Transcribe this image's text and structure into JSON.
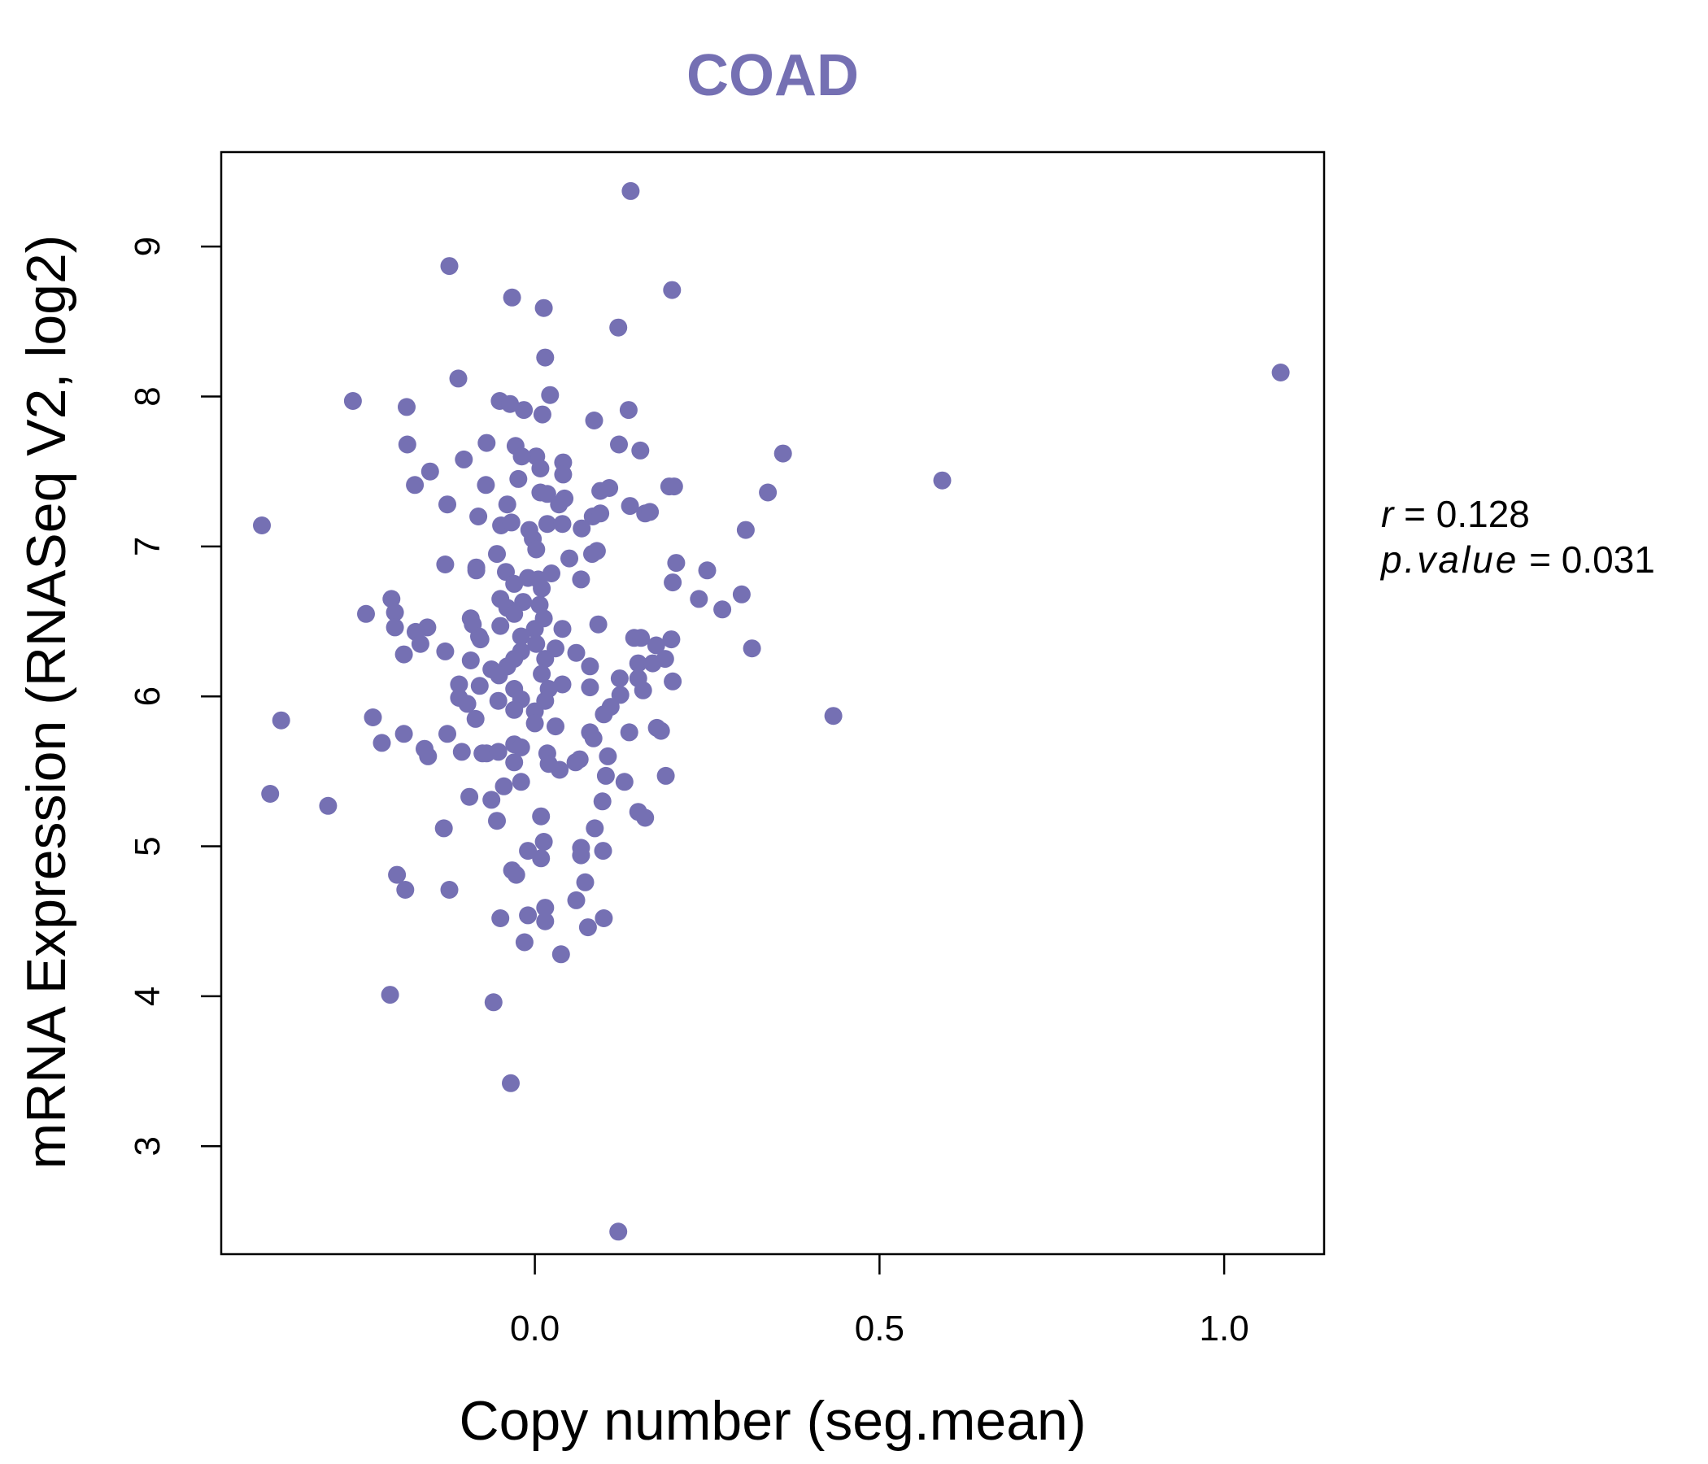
{
  "chart_data": {
    "type": "scatter",
    "title": "COAD",
    "xlabel": "Copy number (seg.mean)",
    "ylabel": "mRNA Expression (RNASeq V2, log2)",
    "xlim": [
      -0.455,
      1.145
    ],
    "ylim": [
      2.28,
      9.63
    ],
    "xticks": [
      0.0,
      0.5,
      1.0
    ],
    "xtick_labels": [
      "0.0",
      "0.5",
      "1.0"
    ],
    "yticks": [
      3,
      4,
      5,
      6,
      7,
      8,
      9
    ],
    "ytick_labels": [
      "3",
      "4",
      "5",
      "6",
      "7",
      "8",
      "9"
    ],
    "color": "#7570b3",
    "stats": {
      "r_label": "r",
      "r_value": "0.128",
      "p_label": "p.value",
      "p_value": "0.031"
    },
    "series": [
      {
        "name": "COAD",
        "points": [
          [
            0.139,
            9.37
          ],
          [
            -0.124,
            8.87
          ],
          [
            0.199,
            8.71
          ],
          [
            -0.033,
            8.66
          ],
          [
            0.013,
            8.59
          ],
          [
            0.121,
            8.46
          ],
          [
            0.015,
            8.26
          ],
          [
            1.082,
            8.16
          ],
          [
            -0.111,
            8.12
          ],
          [
            0.022,
            8.01
          ],
          [
            -0.264,
            7.97
          ],
          [
            -0.051,
            7.97
          ],
          [
            -0.036,
            7.95
          ],
          [
            -0.186,
            7.93
          ],
          [
            -0.016,
            7.91
          ],
          [
            0.011,
            7.88
          ],
          [
            0.136,
            7.91
          ],
          [
            0.086,
            7.84
          ],
          [
            -0.07,
            7.69
          ],
          [
            -0.185,
            7.68
          ],
          [
            -0.028,
            7.67
          ],
          [
            0.122,
            7.68
          ],
          [
            0.153,
            7.64
          ],
          [
            0.36,
            7.62
          ],
          [
            -0.103,
            7.58
          ],
          [
            0.002,
            7.6
          ],
          [
            0.041,
            7.56
          ],
          [
            -0.019,
            7.6
          ],
          [
            0.008,
            7.52
          ],
          [
            -0.152,
            7.5
          ],
          [
            0.041,
            7.48
          ],
          [
            -0.024,
            7.45
          ],
          [
            0.591,
            7.44
          ],
          [
            -0.174,
            7.41
          ],
          [
            -0.071,
            7.41
          ],
          [
            0.008,
            7.36
          ],
          [
            0.095,
            7.37
          ],
          [
            0.108,
            7.39
          ],
          [
            0.195,
            7.4
          ],
          [
            0.202,
            7.4
          ],
          [
            0.338,
            7.36
          ],
          [
            0.018,
            7.35
          ],
          [
            0.043,
            7.32
          ],
          [
            -0.127,
            7.28
          ],
          [
            -0.04,
            7.28
          ],
          [
            0.035,
            7.28
          ],
          [
            0.138,
            7.27
          ],
          [
            0.16,
            7.22
          ],
          [
            0.167,
            7.23
          ],
          [
            -0.396,
            7.14
          ],
          [
            -0.082,
            7.2
          ],
          [
            -0.049,
            7.14
          ],
          [
            -0.034,
            7.16
          ],
          [
            -0.008,
            7.11
          ],
          [
            0.018,
            7.15
          ],
          [
            0.084,
            7.2
          ],
          [
            0.095,
            7.22
          ],
          [
            0.306,
            7.11
          ],
          [
            0.068,
            7.12
          ],
          [
            0.04,
            7.15
          ],
          [
            -0.003,
            7.05
          ],
          [
            0.002,
            6.98
          ],
          [
            -0.055,
            6.95
          ],
          [
            0.05,
            6.92
          ],
          [
            0.083,
            6.95
          ],
          [
            0.09,
            6.97
          ],
          [
            -0.13,
            6.88
          ],
          [
            -0.085,
            6.86
          ],
          [
            -0.085,
            6.84
          ],
          [
            0.205,
            6.89
          ],
          [
            0.25,
            6.84
          ],
          [
            -0.042,
            6.83
          ],
          [
            0.024,
            6.82
          ],
          [
            -0.01,
            6.79
          ],
          [
            0.005,
            6.78
          ],
          [
            0.067,
            6.78
          ],
          [
            0.2,
            6.76
          ],
          [
            -0.03,
            6.75
          ],
          [
            0.01,
            6.72
          ],
          [
            0.3,
            6.68
          ],
          [
            -0.208,
            6.65
          ],
          [
            0.238,
            6.65
          ],
          [
            -0.05,
            6.65
          ],
          [
            -0.017,
            6.63
          ],
          [
            0.007,
            6.61
          ],
          [
            0.272,
            6.58
          ],
          [
            -0.04,
            6.59
          ],
          [
            -0.245,
            6.55
          ],
          [
            -0.203,
            6.56
          ],
          [
            -0.03,
            6.55
          ],
          [
            -0.093,
            6.52
          ],
          [
            0.013,
            6.52
          ],
          [
            -0.203,
            6.46
          ],
          [
            -0.156,
            6.46
          ],
          [
            0.092,
            6.48
          ],
          [
            -0.09,
            6.48
          ],
          [
            -0.05,
            6.47
          ],
          [
            0.0,
            6.45
          ],
          [
            0.04,
            6.45
          ],
          [
            -0.173,
            6.43
          ],
          [
            -0.081,
            6.4
          ],
          [
            -0.02,
            6.4
          ],
          [
            -0.166,
            6.35
          ],
          [
            -0.079,
            6.38
          ],
          [
            0.002,
            6.35
          ],
          [
            0.144,
            6.39
          ],
          [
            0.154,
            6.39
          ],
          [
            0.176,
            6.34
          ],
          [
            0.198,
            6.38
          ],
          [
            0.315,
            6.32
          ],
          [
            -0.13,
            6.3
          ],
          [
            -0.02,
            6.3
          ],
          [
            0.03,
            6.32
          ],
          [
            0.06,
            6.29
          ],
          [
            -0.19,
            6.28
          ],
          [
            -0.03,
            6.25
          ],
          [
            0.015,
            6.25
          ],
          [
            0.15,
            6.22
          ],
          [
            0.171,
            6.22
          ],
          [
            0.189,
            6.25
          ],
          [
            -0.093,
            6.24
          ],
          [
            -0.063,
            6.18
          ],
          [
            -0.04,
            6.2
          ],
          [
            0.08,
            6.2
          ],
          [
            0.01,
            6.15
          ],
          [
            -0.052,
            6.14
          ],
          [
            0.123,
            6.12
          ],
          [
            0.15,
            6.12
          ],
          [
            0.2,
            6.1
          ],
          [
            -0.11,
            6.08
          ],
          [
            -0.08,
            6.07
          ],
          [
            0.04,
            6.08
          ],
          [
            0.08,
            6.06
          ],
          [
            -0.03,
            6.05
          ],
          [
            0.02,
            6.05
          ],
          [
            0.157,
            6.04
          ],
          [
            0.124,
            6.01
          ],
          [
            -0.11,
            5.99
          ],
          [
            -0.02,
            5.98
          ],
          [
            0.015,
            5.97
          ],
          [
            -0.053,
            5.97
          ],
          [
            -0.098,
            5.95
          ],
          [
            0.11,
            5.93
          ],
          [
            -0.03,
            5.91
          ],
          [
            0.0,
            5.9
          ],
          [
            0.1,
            5.88
          ],
          [
            -0.086,
            5.85
          ],
          [
            -0.368,
            5.84
          ],
          [
            -0.235,
            5.86
          ],
          [
            0.433,
            5.87
          ],
          [
            0.0,
            5.82
          ],
          [
            0.03,
            5.8
          ],
          [
            0.177,
            5.79
          ],
          [
            0.183,
            5.77
          ],
          [
            0.08,
            5.76
          ],
          [
            0.137,
            5.76
          ],
          [
            -0.19,
            5.75
          ],
          [
            -0.127,
            5.75
          ],
          [
            0.085,
            5.72
          ],
          [
            -0.222,
            5.69
          ],
          [
            -0.03,
            5.68
          ],
          [
            -0.02,
            5.66
          ],
          [
            -0.16,
            5.65
          ],
          [
            -0.155,
            5.6
          ],
          [
            -0.106,
            5.63
          ],
          [
            -0.076,
            5.62
          ],
          [
            -0.07,
            5.62
          ],
          [
            -0.053,
            5.63
          ],
          [
            0.018,
            5.62
          ],
          [
            0.059,
            5.56
          ],
          [
            0.106,
            5.6
          ],
          [
            0.065,
            5.58
          ],
          [
            -0.03,
            5.56
          ],
          [
            0.02,
            5.55
          ],
          [
            0.036,
            5.51
          ],
          [
            0.103,
            5.47
          ],
          [
            0.19,
            5.47
          ],
          [
            -0.02,
            5.43
          ],
          [
            0.13,
            5.43
          ],
          [
            -0.384,
            5.35
          ],
          [
            -0.045,
            5.4
          ],
          [
            -0.3,
            5.27
          ],
          [
            -0.095,
            5.33
          ],
          [
            -0.063,
            5.31
          ],
          [
            0.098,
            5.3
          ],
          [
            0.15,
            5.23
          ],
          [
            0.16,
            5.19
          ],
          [
            0.009,
            5.2
          ],
          [
            -0.055,
            5.17
          ],
          [
            -0.132,
            5.12
          ],
          [
            0.087,
            5.12
          ],
          [
            0.013,
            5.03
          ],
          [
            0.067,
            4.99
          ],
          [
            -0.01,
            4.97
          ],
          [
            0.009,
            4.92
          ],
          [
            0.067,
            4.94
          ],
          [
            0.099,
            4.97
          ],
          [
            -0.033,
            4.84
          ],
          [
            -0.027,
            4.81
          ],
          [
            -0.2,
            4.81
          ],
          [
            -0.188,
            4.71
          ],
          [
            0.073,
            4.76
          ],
          [
            -0.124,
            4.71
          ],
          [
            0.06,
            4.64
          ],
          [
            0.015,
            4.59
          ],
          [
            -0.01,
            4.54
          ],
          [
            0.015,
            4.5
          ],
          [
            -0.05,
            4.52
          ],
          [
            0.1,
            4.52
          ],
          [
            0.077,
            4.46
          ],
          [
            -0.015,
            4.36
          ],
          [
            0.038,
            4.28
          ],
          [
            -0.21,
            4.01
          ],
          [
            -0.06,
            3.96
          ],
          [
            -0.035,
            3.42
          ],
          [
            0.121,
            2.43
          ]
        ]
      }
    ]
  }
}
